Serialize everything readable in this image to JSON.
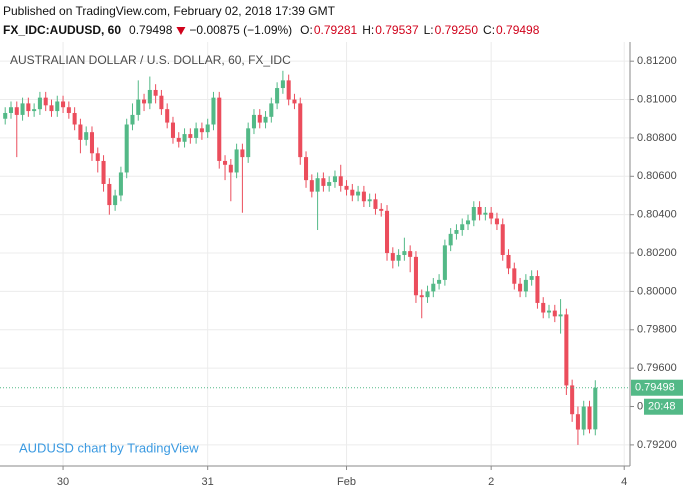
{
  "header": {
    "published": "Published on TradingView.com, February 02, 2018 17:39 GMT",
    "symbol": "FX_IDC:AUDUSD, 60",
    "last": "0.79498",
    "change": "−0.00875 (−1.09%)",
    "ohlc": [
      {
        "label": "O:",
        "value": "0.79281"
      },
      {
        "label": "H:",
        "value": "0.79537"
      },
      {
        "label": "L:",
        "value": "0.79250"
      },
      {
        "label": "C:",
        "value": "0.79498"
      }
    ]
  },
  "chart_data": {
    "type": "candlestick",
    "title": "AUSTRALIAN DOLLAR / U.S. DOLLAR, 60, FX_IDC",
    "watermark": "AUDUSD chart by TradingView",
    "countdown": "20:48",
    "up_color": "#53b987",
    "down_color": "#eb4d5c",
    "grid": true,
    "xlim": [
      -0.9,
      108
    ],
    "xticks": [
      {
        "value": 10,
        "label": "30"
      },
      {
        "value": 35,
        "label": "31"
      },
      {
        "value": 59,
        "label": "Feb"
      },
      {
        "value": 84,
        "label": "2"
      },
      {
        "value": 107,
        "label": "4"
      }
    ],
    "ylim": [
      0.7909,
      0.813
    ],
    "yticks": [
      {
        "value": 0.812,
        "label": "0.81200"
      },
      {
        "value": 0.81,
        "label": "0.81000"
      },
      {
        "value": 0.808,
        "label": "0.80800"
      },
      {
        "value": 0.806,
        "label": "0.80600"
      },
      {
        "value": 0.804,
        "label": "0.80400"
      },
      {
        "value": 0.802,
        "label": "0.80200"
      },
      {
        "value": 0.8,
        "label": "0.80000"
      },
      {
        "value": 0.798,
        "label": "0.79800"
      },
      {
        "value": 0.796,
        "label": "0.79600"
      },
      {
        "value": 0.794,
        "label": "0.79400"
      },
      {
        "value": 0.792,
        "label": "0.79200"
      }
    ],
    "open": [
      0.809,
      0.8093,
      0.8096,
      0.8092,
      0.8098,
      0.8094,
      0.8095,
      0.8101,
      0.8097,
      0.8094,
      0.8099,
      0.8096,
      0.8093,
      0.8087,
      0.8079,
      0.8083,
      0.8072,
      0.8068,
      0.8056,
      0.8045,
      0.805,
      0.8062,
      0.8087,
      0.8092,
      0.81,
      0.8098,
      0.8105,
      0.8102,
      0.8095,
      0.8088,
      0.808,
      0.8078,
      0.8082,
      0.808,
      0.8085,
      0.8083,
      0.8087,
      0.8101,
      0.8068,
      0.8066,
      0.8062,
      0.8074,
      0.807,
      0.8085,
      0.8092,
      0.8088,
      0.8091,
      0.8098,
      0.8106,
      0.811,
      0.81,
      0.8098,
      0.807,
      0.8058,
      0.8052,
      0.8059,
      0.8055,
      0.8057,
      0.806,
      0.8055,
      0.8053,
      0.805,
      0.8052,
      0.8047,
      0.8048,
      0.8043,
      0.8042,
      0.802,
      0.8016,
      0.8019,
      0.8021,
      0.8018,
      0.7998,
      0.7997,
      0.8,
      0.8004,
      0.8006,
      0.8024,
      0.803,
      0.8032,
      0.8035,
      0.8037,
      0.8044,
      0.804,
      0.8041,
      0.8038,
      0.8035,
      0.8019,
      0.8012,
      0.8004,
      0.8,
      0.8006,
      0.8008,
      0.7994,
      0.7989,
      0.799,
      0.7987,
      0.7988,
      0.7951,
      0.7936,
      0.7928,
      0.794,
      0.79281
    ],
    "high": [
      0.8096,
      0.8099,
      0.8099,
      0.8101,
      0.8101,
      0.8098,
      0.8104,
      0.8104,
      0.81,
      0.8102,
      0.8102,
      0.8099,
      0.8096,
      0.809,
      0.8086,
      0.8086,
      0.8075,
      0.8071,
      0.8059,
      0.8053,
      0.8065,
      0.809,
      0.8098,
      0.811,
      0.8103,
      0.8112,
      0.8108,
      0.8105,
      0.8098,
      0.8091,
      0.8083,
      0.8085,
      0.8085,
      0.8088,
      0.8088,
      0.809,
      0.8104,
      0.8104,
      0.8071,
      0.8069,
      0.8077,
      0.8077,
      0.8088,
      0.8095,
      0.8095,
      0.8094,
      0.8101,
      0.8109,
      0.8115,
      0.8113,
      0.8103,
      0.8101,
      0.8073,
      0.8061,
      0.8062,
      0.8062,
      0.806,
      0.8063,
      0.8066,
      0.8058,
      0.8056,
      0.8055,
      0.8055,
      0.8051,
      0.8051,
      0.8046,
      0.8045,
      0.8023,
      0.8022,
      0.8028,
      0.8024,
      0.8021,
      0.8001,
      0.8003,
      0.8007,
      0.8009,
      0.8027,
      0.8033,
      0.8035,
      0.8038,
      0.804,
      0.8047,
      0.8047,
      0.8044,
      0.8044,
      0.8041,
      0.8038,
      0.8022,
      0.8015,
      0.8007,
      0.8009,
      0.8011,
      0.8011,
      0.7997,
      0.7993,
      0.7993,
      0.7996,
      0.7991,
      0.7954,
      0.794,
      0.7943,
      0.7943,
      0.79537
    ],
    "low": [
      0.8087,
      0.809,
      0.807,
      0.8089,
      0.8091,
      0.8091,
      0.8092,
      0.8094,
      0.8091,
      0.8091,
      0.8093,
      0.809,
      0.8084,
      0.8072,
      0.8076,
      0.8068,
      0.8062,
      0.8052,
      0.804,
      0.8042,
      0.8047,
      0.8059,
      0.8084,
      0.8089,
      0.8094,
      0.8095,
      0.8098,
      0.8092,
      0.8085,
      0.8077,
      0.8075,
      0.8075,
      0.8077,
      0.8077,
      0.8079,
      0.808,
      0.8084,
      0.8064,
      0.8058,
      0.8047,
      0.8059,
      0.8041,
      0.8067,
      0.8082,
      0.8085,
      0.8085,
      0.8088,
      0.8095,
      0.8103,
      0.8097,
      0.8095,
      0.8066,
      0.8054,
      0.8049,
      0.8032,
      0.8052,
      0.8052,
      0.8054,
      0.8052,
      0.805,
      0.8047,
      0.8047,
      0.8044,
      0.8044,
      0.804,
      0.8039,
      0.8016,
      0.8012,
      0.8013,
      0.8016,
      0.801,
      0.7994,
      0.7986,
      0.7994,
      0.7997,
      0.8001,
      0.8003,
      0.8021,
      0.8027,
      0.8029,
      0.8032,
      0.8034,
      0.8037,
      0.8037,
      0.8035,
      0.8032,
      0.8016,
      0.8009,
      0.8001,
      0.7997,
      0.7997,
      0.8003,
      0.7991,
      0.7986,
      0.7986,
      0.7984,
      0.7978,
      0.7946,
      0.7932,
      0.792,
      0.7925,
      0.7926,
      0.7925
    ],
    "close": [
      0.8093,
      0.8096,
      0.8092,
      0.8098,
      0.8094,
      0.8095,
      0.8101,
      0.8097,
      0.8094,
      0.8099,
      0.8096,
      0.8093,
      0.8087,
      0.8079,
      0.8083,
      0.8072,
      0.8068,
      0.8056,
      0.8045,
      0.805,
      0.8062,
      0.8087,
      0.8092,
      0.81,
      0.8098,
      0.8105,
      0.8102,
      0.8095,
      0.8088,
      0.808,
      0.8078,
      0.8082,
      0.808,
      0.8085,
      0.8083,
      0.8087,
      0.8101,
      0.8068,
      0.8066,
      0.8062,
      0.8074,
      0.807,
      0.8085,
      0.8092,
      0.8088,
      0.8091,
      0.8098,
      0.8106,
      0.811,
      0.81,
      0.8098,
      0.807,
      0.8058,
      0.8052,
      0.8059,
      0.8055,
      0.8057,
      0.806,
      0.8055,
      0.8053,
      0.805,
      0.8052,
      0.8047,
      0.8048,
      0.8043,
      0.8042,
      0.802,
      0.8016,
      0.8019,
      0.8021,
      0.8018,
      0.7998,
      0.7997,
      0.8,
      0.8004,
      0.8006,
      0.8024,
      0.803,
      0.8032,
      0.8035,
      0.8037,
      0.8044,
      0.804,
      0.8041,
      0.8038,
      0.8035,
      0.8019,
      0.8012,
      0.8004,
      0.8,
      0.8006,
      0.8008,
      0.7994,
      0.7989,
      0.799,
      0.7987,
      0.7988,
      0.7951,
      0.7936,
      0.7928,
      0.794,
      0.79281,
      0.79498
    ]
  }
}
